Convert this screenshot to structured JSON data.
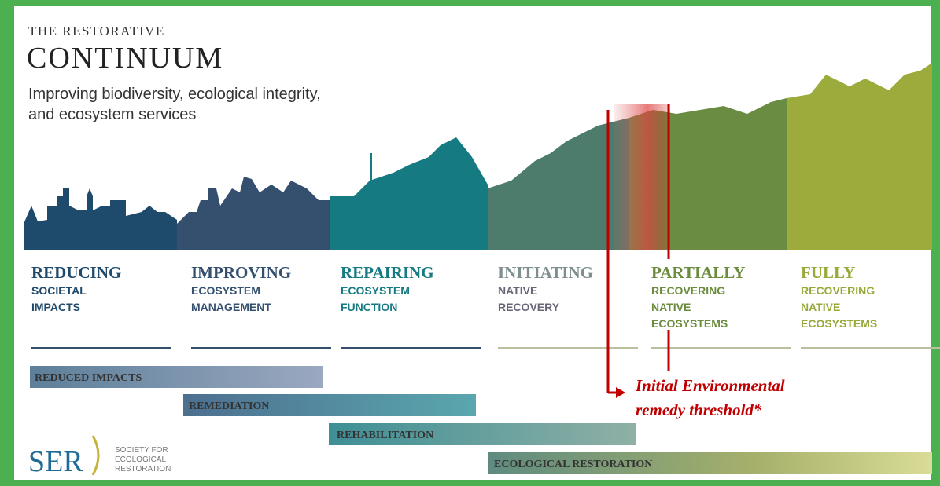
{
  "header": {
    "kicker": "THE RESTORATIVE",
    "title": "CONTINUUM",
    "subtitle_lines": [
      "Improving biodiversity, ecological integrity,",
      "and ecosystem services"
    ]
  },
  "stages": [
    {
      "heading": "REDUCING",
      "lines": [
        "SOCIETAL",
        "IMPACTS"
      ]
    },
    {
      "heading": "IMPROVING",
      "lines": [
        "ECOSYSTEM",
        "MANAGEMENT"
      ]
    },
    {
      "heading": "REPAIRING",
      "lines": [
        "ECOSYSTEM",
        "FUNCTION"
      ]
    },
    {
      "heading": "INITIATING",
      "lines": [
        "NATIVE",
        "RECOVERY"
      ]
    },
    {
      "heading": "PARTIALLY",
      "lines": [
        "RECOVERING",
        "NATIVE",
        "ECOSYSTEMS"
      ]
    },
    {
      "heading": "FULLY",
      "lines": [
        "RECOVERING",
        "NATIVE",
        "ECOSYSTEMS"
      ]
    }
  ],
  "bars": [
    "REDUCED IMPACTS",
    "REMEDIATION",
    "REHABILITATION",
    "ECOLOGICAL RESTORATION"
  ],
  "logo": {
    "mark": "SER",
    "lines": [
      "SOCIETY FOR",
      "ECOLOGICAL",
      "RESTORATION"
    ]
  },
  "annotation": {
    "lines": [
      "Initial Environmental",
      "remedy threshold*"
    ]
  }
}
